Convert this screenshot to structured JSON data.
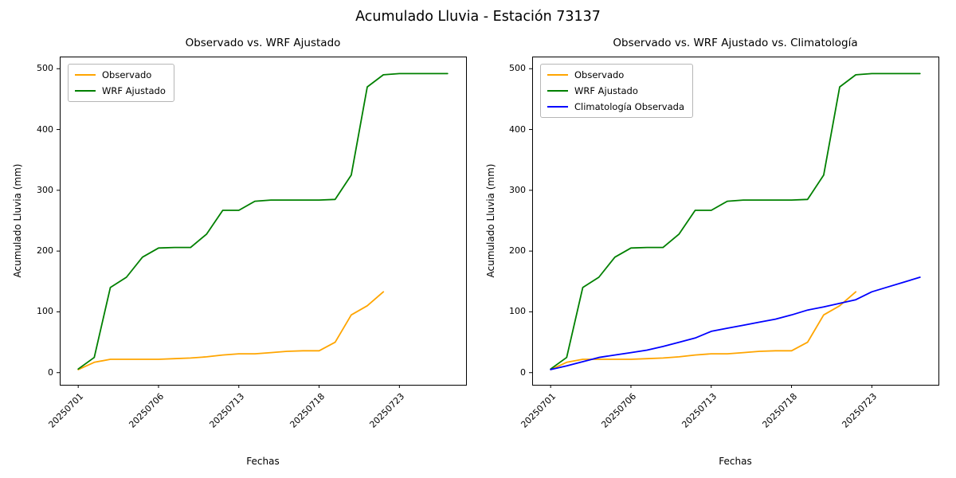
{
  "figure": {
    "title": "Acumulado Lluvia - Estación 73137",
    "background": "#ffffff"
  },
  "chart_data": [
    {
      "type": "line",
      "title": "Observado vs. WRF Ajustado",
      "xlabel": "Fechas",
      "ylabel": "Acumulado Lluvia (mm)",
      "ylim": [
        -20,
        520
      ],
      "yticks": [
        0,
        100,
        200,
        300,
        400,
        500
      ],
      "grid": false,
      "legend_position": "upper left",
      "categories": [
        "20250701",
        "20250702",
        "20250703",
        "20250704",
        "20250705",
        "20250706",
        "20250707",
        "20250708",
        "20250709",
        "20250710",
        "20250713",
        "20250714",
        "20250715",
        "20250716",
        "20250717",
        "20250718",
        "20250719",
        "20250720",
        "20250721",
        "20250722",
        "20250723",
        "20250724",
        "20250725",
        "20250726"
      ],
      "xtick_indices": [
        0,
        5,
        10,
        15,
        20
      ],
      "xtick_labels": [
        "20250701",
        "20250706",
        "20250713",
        "20250718",
        "20250723"
      ],
      "series": [
        {
          "name": "Observado",
          "color": "#ffa500",
          "values": [
            5,
            17,
            22,
            22,
            22,
            22,
            23,
            24,
            26,
            29,
            31,
            31,
            33,
            35,
            36,
            36,
            50,
            95,
            110,
            133
          ]
        },
        {
          "name": "WRF Ajustado",
          "color": "#008000",
          "values": [
            6,
            25,
            140,
            157,
            190,
            205,
            206,
            206,
            228,
            267,
            267,
            282,
            284,
            284,
            284,
            284,
            285,
            325,
            470,
            490,
            492,
            492,
            492,
            492
          ]
        }
      ]
    },
    {
      "type": "line",
      "title": "Observado vs. WRF Ajustado vs. Climatología",
      "xlabel": "Fechas",
      "ylabel": "Acumulado Lluvia (mm)",
      "ylim": [
        -20,
        520
      ],
      "yticks": [
        0,
        100,
        200,
        300,
        400,
        500
      ],
      "grid": false,
      "legend_position": "upper left",
      "categories": [
        "20250701",
        "20250702",
        "20250703",
        "20250704",
        "20250705",
        "20250706",
        "20250707",
        "20250708",
        "20250709",
        "20250710",
        "20250713",
        "20250714",
        "20250715",
        "20250716",
        "20250717",
        "20250718",
        "20250719",
        "20250720",
        "20250721",
        "20250722",
        "20250723",
        "20250724",
        "20250725",
        "20250726"
      ],
      "xtick_indices": [
        0,
        5,
        10,
        15,
        20
      ],
      "xtick_labels": [
        "20250701",
        "20250706",
        "20250713",
        "20250718",
        "20250723"
      ],
      "series": [
        {
          "name": "Observado",
          "color": "#ffa500",
          "values": [
            5,
            17,
            22,
            22,
            22,
            22,
            23,
            24,
            26,
            29,
            31,
            31,
            33,
            35,
            36,
            36,
            50,
            95,
            110,
            133
          ]
        },
        {
          "name": "WRF Ajustado",
          "color": "#008000",
          "values": [
            6,
            25,
            140,
            157,
            190,
            205,
            206,
            206,
            228,
            267,
            267,
            282,
            284,
            284,
            284,
            284,
            285,
            325,
            470,
            490,
            492,
            492,
            492,
            492
          ]
        },
        {
          "name": "Climatología Observada",
          "color": "#0000ff",
          "values": [
            5,
            11,
            18,
            25,
            29,
            33,
            37,
            43,
            50,
            57,
            68,
            73,
            78,
            83,
            88,
            95,
            103,
            108,
            114,
            120,
            133,
            141,
            149,
            157
          ]
        }
      ]
    }
  ]
}
